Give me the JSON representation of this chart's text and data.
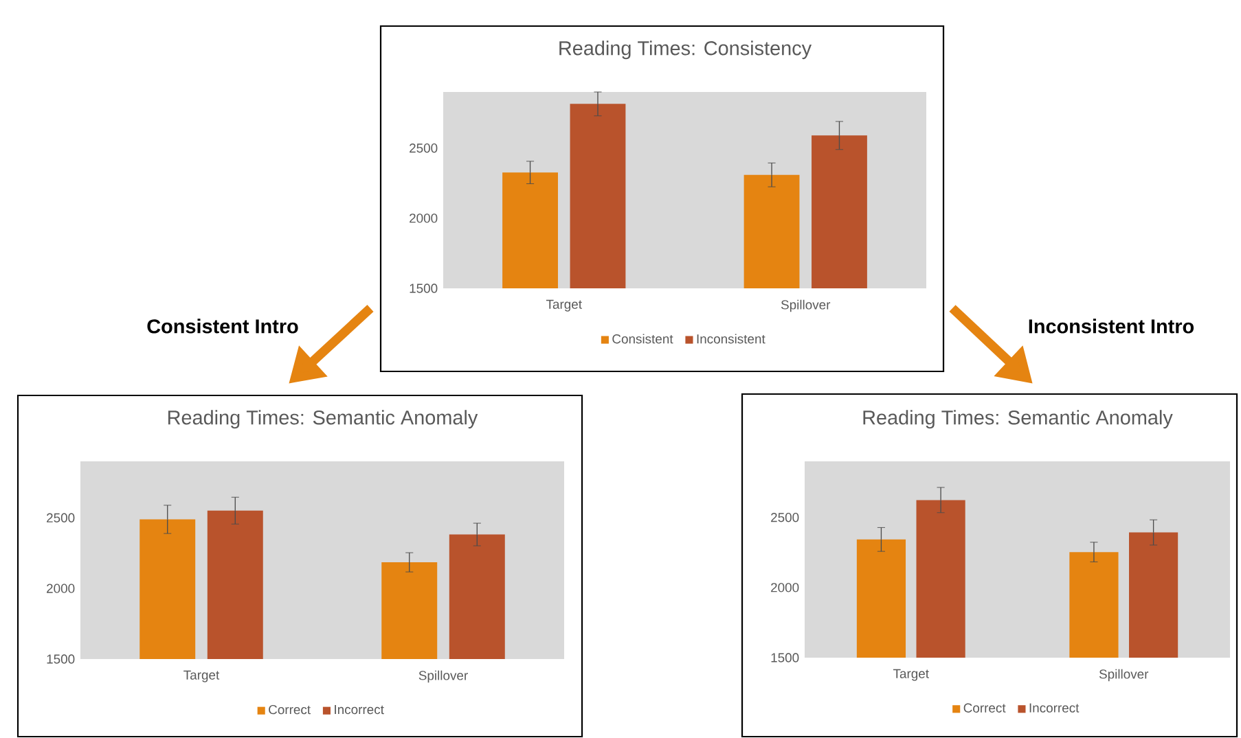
{
  "chart_data": [
    {
      "type": "bar",
      "title": "Reading Times: Consistency",
      "categories": [
        "Target",
        "Spillover"
      ],
      "series": [
        {
          "name": "Consistent",
          "color": "#e58411",
          "values": [
            2326,
            2309
          ],
          "errors": [
            80,
            85
          ]
        },
        {
          "name": "Inconsistent",
          "color": "#b9532c",
          "values": [
            2815,
            2590
          ],
          "errors": [
            85,
            100
          ]
        }
      ],
      "ylim": [
        1500,
        2900
      ],
      "yticks": [
        1500,
        2000,
        2500
      ],
      "legend": "bottom"
    },
    {
      "type": "bar",
      "title": "Reading Times: Semantic Anomaly",
      "categories": [
        "Target",
        "Spillover"
      ],
      "series": [
        {
          "name": "Correct",
          "color": "#e58411",
          "values": [
            2489,
            2185
          ],
          "errors": [
            100,
            68
          ]
        },
        {
          "name": "Incorrect",
          "color": "#b9532c",
          "values": [
            2551,
            2382
          ],
          "errors": [
            95,
            80
          ]
        }
      ],
      "ylim": [
        1500,
        2900
      ],
      "yticks": [
        1500,
        2000,
        2500
      ],
      "legend": "bottom",
      "annotations": [
        "Consistent Intro"
      ]
    },
    {
      "type": "bar",
      "title": "Reading Times: Semantic Anomaly",
      "categories": [
        "Target",
        "Spillover"
      ],
      "series": [
        {
          "name": "Correct",
          "color": "#e58411",
          "values": [
            2343,
            2253
          ],
          "errors": [
            85,
            70
          ]
        },
        {
          "name": "Incorrect",
          "color": "#b9532c",
          "values": [
            2624,
            2393
          ],
          "errors": [
            90,
            90
          ]
        }
      ],
      "ylim": [
        1500,
        2900
      ],
      "yticks": [
        1500,
        2000,
        2500
      ],
      "legend": "bottom",
      "annotations": [
        "Inconsistent Intro"
      ]
    }
  ]
}
